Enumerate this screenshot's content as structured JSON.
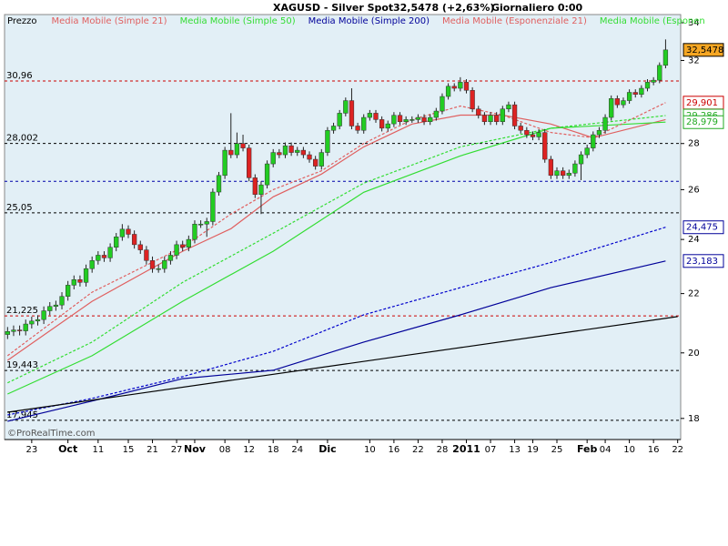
{
  "chart_data": {
    "type": "candlestick",
    "title": "XAGUSD - Silver Spot",
    "price_info": "32,5478 (+2,63%)",
    "period": "Giornaliero  0:00",
    "price_label": "Prezzo",
    "watermark": "©ProRealTime.com",
    "log_scale": true,
    "ylim": [
      17.4,
      34.45
    ],
    "yticks": [
      18,
      20,
      22,
      24,
      26,
      28,
      32,
      34
    ],
    "up_color": "#22cc22",
    "down_color": "#dd2222",
    "categories": [
      null,
      null,
      null,
      null,
      "23",
      null,
      null,
      null,
      null,
      null,
      "Oct",
      null,
      null,
      null,
      null,
      "11",
      null,
      null,
      null,
      null,
      "15",
      null,
      null,
      null,
      "21",
      null,
      null,
      null,
      "27",
      null,
      null,
      "Nov",
      null,
      null,
      null,
      null,
      "08",
      null,
      null,
      null,
      "12",
      null,
      null,
      null,
      "18",
      null,
      null,
      null,
      "24",
      null,
      null,
      null,
      null,
      "Dic",
      null,
      null,
      null,
      null,
      null,
      null,
      "10",
      null,
      null,
      null,
      "16",
      null,
      null,
      null,
      "22",
      null,
      null,
      null,
      "28",
      null,
      null,
      null,
      "2011",
      null,
      null,
      null,
      "07",
      null,
      null,
      null,
      "13",
      null,
      null,
      "19",
      null,
      null,
      null,
      "25",
      null,
      null,
      null,
      null,
      "Feb",
      null,
      null,
      "04",
      null,
      null,
      null,
      "10",
      null,
      null,
      null,
      "16",
      null,
      null,
      null,
      "22"
    ],
    "open": [
      20.6,
      20.7,
      20.75,
      20.72,
      20.95,
      21.05,
      21.1,
      21.4,
      21.55,
      21.6,
      21.9,
      22.3,
      22.5,
      22.4,
      22.9,
      23.2,
      23.4,
      23.3,
      23.7,
      24.1,
      24.4,
      24.2,
      23.8,
      23.6,
      23.2,
      22.9,
      22.9,
      23.2,
      23.4,
      23.8,
      23.7,
      24,
      24.6,
      24.6,
      24.7,
      25.9,
      26.6,
      27.7,
      27.5,
      28,
      27.8,
      26.5,
      25.8,
      26.2,
      27.1,
      27.6,
      27.5,
      27.9,
      27.6,
      27.7,
      27.5,
      27.3,
      27,
      27.6,
      28.6,
      28.8,
      29.4,
      30,
      28.8,
      28.6,
      29.2,
      29.4,
      29.1,
      28.7,
      28.9,
      29.3,
      29,
      29.1,
      29.1,
      29.2,
      29,
      29.2,
      29.5,
      30.2,
      30.7,
      30.6,
      30.9,
      30.5,
      29.6,
      29.3,
      29,
      29.3,
      29,
      29.6,
      29.8,
      28.8,
      28.6,
      28.4,
      28.3,
      28.5,
      27.3,
      26.6,
      26.8,
      26.6,
      26.7,
      27.1,
      27.5,
      27.8,
      28.4,
      28.6,
      29.2,
      30.1,
      29.8,
      30,
      30.4,
      30.3,
      30.6,
      30.9,
      31,
      31.75,
      null,
      null
    ],
    "high": [
      20.85,
      20.9,
      20.9,
      21.1,
      21.2,
      21.25,
      21.55,
      21.7,
      21.75,
      22.05,
      22.45,
      22.65,
      22.65,
      23.05,
      23.35,
      23.55,
      23.55,
      23.85,
      24.25,
      24.6,
      24.55,
      24.35,
      23.95,
      23.75,
      23.35,
      23.05,
      23.35,
      23.55,
      23.95,
      23.95,
      24.15,
      24.75,
      24.75,
      24.85,
      26.05,
      26.75,
      27.85,
      29.4,
      28.5,
      28.4,
      27.95,
      26.65,
      26.35,
      27.25,
      27.75,
      27.75,
      28.05,
      28.05,
      27.85,
      27.85,
      27.65,
      27.45,
      27.75,
      28.75,
      28.95,
      29.55,
      30.15,
      30.6,
      28.95,
      29.35,
      29.55,
      29.55,
      29.25,
      29.05,
      29.45,
      29.45,
      29.25,
      29.25,
      29.35,
      29.35,
      29.35,
      29.65,
      30.35,
      30.85,
      30.85,
      31.15,
      31.05,
      30.65,
      29.75,
      29.45,
      29.45,
      29.45,
      29.75,
      29.95,
      29.95,
      28.95,
      28.75,
      28.55,
      28.65,
      28.65,
      27.45,
      26.95,
      26.95,
      26.85,
      27.25,
      27.65,
      27.95,
      28.55,
      28.75,
      29.35,
      30.25,
      30.25,
      30.15,
      30.55,
      30.55,
      30.75,
      31.05,
      31.15,
      31.9,
      33.1,
      null,
      null
    ],
    "low": [
      20.45,
      20.55,
      20.57,
      20.57,
      20.8,
      20.9,
      20.95,
      21.25,
      21.4,
      21.45,
      21.75,
      22.15,
      22.25,
      22.25,
      22.75,
      23.05,
      23.15,
      23.15,
      23.55,
      23.95,
      24.05,
      23.65,
      23.45,
      23.05,
      22.75,
      22.75,
      22.75,
      23.05,
      23.25,
      23.55,
      23.55,
      23.85,
      24.45,
      24.1,
      24.55,
      25.75,
      26.45,
      27.35,
      27.35,
      27.65,
      26.35,
      25.65,
      25,
      26.05,
      26.95,
      27.35,
      27.35,
      27.45,
      27.45,
      27.35,
      27.15,
      26.85,
      26.85,
      27.45,
      28.45,
      28.65,
      29.25,
      28.65,
      28.45,
      28.45,
      29.05,
      28.95,
      28.55,
      28.55,
      28.75,
      28.85,
      28.85,
      28.95,
      28.95,
      28.85,
      28.85,
      29.05,
      29.35,
      30.05,
      30.45,
      30.45,
      30.35,
      29.45,
      29.15,
      28.85,
      28.85,
      28.85,
      28.85,
      29.45,
      28.65,
      28.45,
      28.25,
      28.15,
      28.15,
      27.15,
      26.45,
      26.45,
      26.45,
      26.45,
      26.55,
      26.4,
      27.35,
      27.65,
      28.25,
      28.45,
      29.05,
      29.65,
      29.65,
      29.85,
      30.15,
      30.15,
      30.45,
      30.75,
      30.85,
      31.6,
      null,
      null
    ],
    "close": [
      20.7,
      20.75,
      20.72,
      20.95,
      21.05,
      21.1,
      21.4,
      21.55,
      21.6,
      21.9,
      22.3,
      22.5,
      22.4,
      22.9,
      23.2,
      23.4,
      23.3,
      23.7,
      24.1,
      24.4,
      24.2,
      23.8,
      23.6,
      23.2,
      22.9,
      22.9,
      23.2,
      23.4,
      23.8,
      23.7,
      24,
      24.6,
      24.6,
      24.7,
      25.9,
      26.6,
      27.7,
      27.5,
      28,
      27.8,
      26.5,
      25.8,
      26.2,
      27.1,
      27.6,
      27.5,
      27.9,
      27.6,
      27.7,
      27.5,
      27.3,
      27,
      27.6,
      28.6,
      28.8,
      29.4,
      30,
      28.8,
      28.6,
      29.2,
      29.4,
      29.1,
      28.7,
      28.9,
      29.3,
      29,
      29.1,
      29.1,
      29.2,
      29,
      29.2,
      29.5,
      30.2,
      30.7,
      30.6,
      30.9,
      30.5,
      29.6,
      29.3,
      29,
      29.3,
      29,
      29.6,
      29.8,
      28.8,
      28.6,
      28.4,
      28.3,
      28.5,
      27.3,
      26.6,
      26.8,
      26.6,
      26.7,
      27.1,
      27.5,
      27.8,
      28.4,
      28.6,
      29.2,
      30.1,
      29.8,
      30,
      30.4,
      30.3,
      30.6,
      30.9,
      31,
      31.75,
      32.5478,
      null,
      null
    ],
    "series": [
      {
        "name": "Media Mobile (Simple 21)",
        "color": "#e06060",
        "dash": false,
        "x": [
          0,
          14,
          29,
          37,
          44,
          52,
          59,
          67,
          75,
          82,
          90,
          97,
          109
        ],
        "values": [
          19.76,
          21.73,
          23.55,
          24.42,
          25.7,
          26.66,
          27.85,
          28.89,
          29.31,
          29.31,
          28.89,
          28.26,
          29.1
        ]
      },
      {
        "name": "Media Mobile (Simple 50)",
        "color": "#33dd33",
        "dash": false,
        "x": [
          0,
          14,
          29,
          44,
          59,
          75,
          90,
          109
        ],
        "values": [
          18.72,
          19.91,
          21.73,
          23.55,
          25.89,
          27.45,
          28.7,
          28.979
        ]
      },
      {
        "name": "Media Mobile (Simple 200)",
        "color": "#000099",
        "dash": false,
        "x": [
          0,
          14,
          29,
          44,
          59,
          75,
          90,
          109
        ],
        "values": [
          17.92,
          18.51,
          19.19,
          19.45,
          20.35,
          21.26,
          22.21,
          23.183
        ]
      },
      {
        "name": "Media Mobile (Esponenziale 21)",
        "color": "#e06060",
        "dash": true,
        "x": [
          0,
          14,
          29,
          37,
          44,
          52,
          59,
          67,
          75,
          82,
          90,
          97,
          109
        ],
        "values": [
          19.91,
          22.05,
          23.7,
          25,
          26,
          26.8,
          28,
          29.1,
          29.74,
          29.31,
          28.5,
          28.26,
          29.901
        ]
      },
      {
        "name": "Media Mobile (Esponen",
        "color": "#33dd33",
        "dash": true,
        "x": [
          0,
          14,
          29,
          44,
          59,
          75,
          90,
          109
        ],
        "values": [
          19.06,
          20.35,
          22.4,
          24.24,
          26.27,
          27.85,
          28.7,
          29.286
        ]
      },
      {
        "color": "#0000cc",
        "dash": true,
        "x": [
          0,
          14,
          29,
          44,
          59,
          75,
          90,
          109
        ],
        "values": [
          18.1,
          18.59,
          19.25,
          20.05,
          21.26,
          22.21,
          23.13,
          24.475
        ]
      },
      {
        "color": "#000000",
        "dash": false,
        "x": [
          0,
          111
        ],
        "values": [
          18.18,
          21.2
        ]
      }
    ],
    "levels": [
      {
        "value": 30.96,
        "label": "30,96",
        "color": "#cc0000"
      },
      {
        "value": 28.002,
        "label": "28,002",
        "color": "#000000"
      },
      {
        "value": 26.35,
        "color": "#0000aa"
      },
      {
        "value": 25.05,
        "label": "25,05",
        "color": "#000000"
      },
      {
        "value": 21.225,
        "label": "21,225",
        "color": "#cc0000"
      },
      {
        "value": 19.443,
        "label": "19,443",
        "color": "#000000"
      },
      {
        "value": 17.945,
        "label": "17,945",
        "color": "#000000"
      }
    ],
    "value_tags": [
      {
        "value": 32.5478,
        "label": "32,5478",
        "color": "#000000",
        "bg": "#f5a623"
      },
      {
        "value": 29.901,
        "label": "29,901",
        "color": "#cc0000",
        "bg": "#ffffff"
      },
      {
        "value": 29.286,
        "label": "29,286",
        "color": "#22aa22",
        "bg": "#ffffff"
      },
      {
        "value": 28.979,
        "label": "28,979",
        "color": "#22aa22",
        "bg": "#ffffff"
      },
      {
        "value": 24.475,
        "label": "24,475",
        "color": "#000099",
        "bg": "#ffffff"
      },
      {
        "value": 23.183,
        "label": "23,183",
        "color": "#000099",
        "bg": "#ffffff"
      }
    ]
  }
}
